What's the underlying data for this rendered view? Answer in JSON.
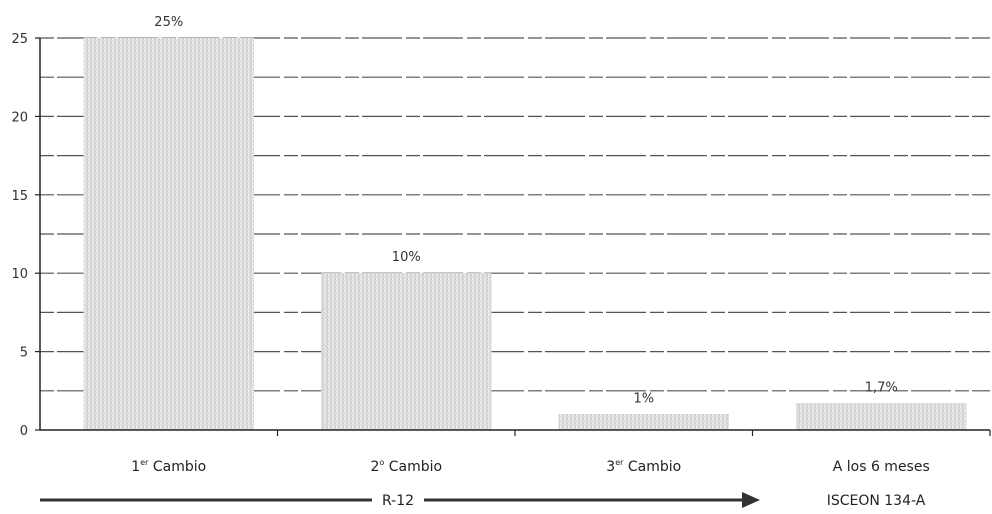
{
  "chart_data": {
    "type": "bar",
    "categories": [
      "1er Cambio",
      "2º Cambio",
      "3er Cambio",
      "A los 6 meses"
    ],
    "category_parts": [
      {
        "main": "1",
        "sup": "er",
        "rest": " Cambio"
      },
      {
        "main": "2",
        "sup": "o",
        "rest": " Cambio"
      },
      {
        "main": "3",
        "sup": "er",
        "rest": " Cambio"
      },
      {
        "main": "A los 6 meses",
        "sup": "",
        "rest": ""
      }
    ],
    "values": [
      25,
      10,
      1,
      1.7
    ],
    "data_labels": [
      "25%",
      "10%",
      "1%",
      "1,7%"
    ],
    "ylim": [
      0,
      25
    ],
    "yticks": [
      "0",
      "5",
      "10",
      "15",
      "20",
      "25"
    ],
    "grid": true,
    "group_labels": {
      "r12": "R-12",
      "isceon": "ISCEON 134-A"
    }
  },
  "colors": {
    "bar_light": "#ececec",
    "bar_dark": "#c9c9c9",
    "grid": "#555555",
    "axis": "#222222",
    "arrow": "#333333"
  }
}
